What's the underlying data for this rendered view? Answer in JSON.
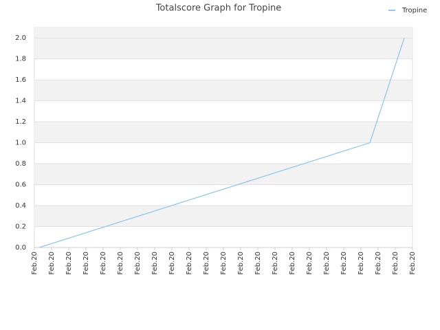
{
  "chart_data": {
    "type": "line",
    "title": "Totalscore Graph for Tropine",
    "x": [
      0.28,
      19.52,
      21.52
    ],
    "series": [
      {
        "name": "Tropine",
        "color": "#90c8f2",
        "values": [
          0,
          1,
          2
        ]
      }
    ],
    "xlim": [
      0,
      22
    ],
    "xticks": [
      {
        "value": 0,
        "label": "Feb.20"
      },
      {
        "value": 1,
        "label": "Feb.20"
      },
      {
        "value": 2,
        "label": "Feb.20"
      },
      {
        "value": 3,
        "label": "Feb.20"
      },
      {
        "value": 4,
        "label": "Feb.20"
      },
      {
        "value": 5,
        "label": "Feb.20"
      },
      {
        "value": 6,
        "label": "Feb.20"
      },
      {
        "value": 7,
        "label": "Feb.20"
      },
      {
        "value": 8,
        "label": "Feb.20"
      },
      {
        "value": 9,
        "label": "Feb.20"
      },
      {
        "value": 10,
        "label": "Feb.20"
      },
      {
        "value": 11,
        "label": "Feb.20"
      },
      {
        "value": 12,
        "label": "Feb.20"
      },
      {
        "value": 13,
        "label": "Feb.20"
      },
      {
        "value": 14,
        "label": "Feb.20"
      },
      {
        "value": 15,
        "label": "Feb.20"
      },
      {
        "value": 16,
        "label": "Feb.20"
      },
      {
        "value": 17,
        "label": "Feb.20"
      },
      {
        "value": 18,
        "label": "Feb.20"
      },
      {
        "value": 19,
        "label": "Feb.20"
      },
      {
        "value": 20,
        "label": "Feb.20"
      },
      {
        "value": 21,
        "label": "Feb.20"
      },
      {
        "value": 22,
        "label": "Feb.20"
      }
    ],
    "ylim": [
      0,
      2.1
    ],
    "yticks": [
      {
        "value": 0,
        "label": "0.0"
      },
      0.2,
      0.4,
      0.6,
      0.8,
      {
        "value": 1,
        "label": "1.0"
      },
      1.2,
      1.4,
      1.6,
      1.8,
      {
        "value": 2,
        "label": "2.0"
      }
    ],
    "grid": true,
    "legend": "top-right"
  }
}
